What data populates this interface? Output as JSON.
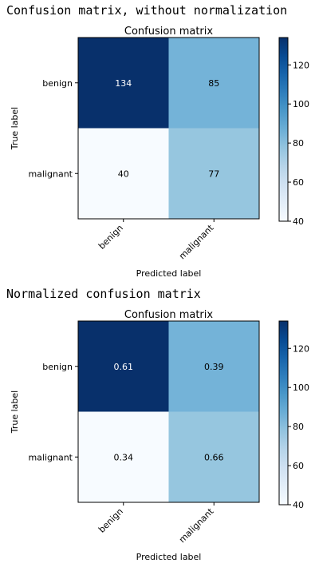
{
  "outputs": [
    "Confusion matrix, without normalization",
    "Normalized confusion matrix"
  ],
  "chart_data": [
    {
      "type": "heatmap",
      "title": "Confusion matrix",
      "xlabel": "Predicted label",
      "ylabel": "True label",
      "x_categories": [
        "benign",
        "malignant"
      ],
      "y_categories": [
        "benign",
        "malignant"
      ],
      "values": [
        [
          134,
          85
        ],
        [
          40,
          77
        ]
      ],
      "cell_labels": [
        [
          "134",
          "85"
        ],
        [
          "40",
          "77"
        ]
      ],
      "colormap": "Blues",
      "color_range": [
        40,
        134
      ],
      "colorbar_ticks": [
        "40",
        "60",
        "80",
        "100",
        "120"
      ]
    },
    {
      "type": "heatmap",
      "title": "Confusion matrix",
      "xlabel": "Predicted label",
      "ylabel": "True label",
      "x_categories": [
        "benign",
        "malignant"
      ],
      "y_categories": [
        "benign",
        "malignant"
      ],
      "values": [
        [
          0.61,
          0.39
        ],
        [
          0.34,
          0.66
        ]
      ],
      "color_values": [
        [
          134,
          85
        ],
        [
          40,
          77
        ]
      ],
      "cell_labels": [
        [
          "0.61",
          "0.39"
        ],
        [
          "0.34",
          "0.66"
        ]
      ],
      "colormap": "Blues",
      "color_range": [
        40,
        134
      ],
      "colorbar_ticks": [
        "40",
        "60",
        "80",
        "100",
        "120"
      ]
    }
  ]
}
